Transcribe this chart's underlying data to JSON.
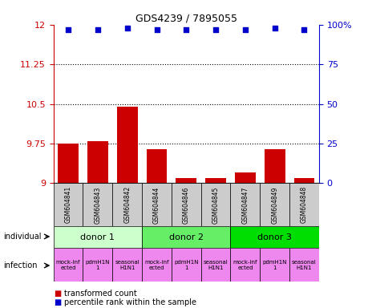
{
  "title": "GDS4239 / 7895055",
  "samples": [
    "GSM604841",
    "GSM604843",
    "GSM604842",
    "GSM604844",
    "GSM604846",
    "GSM604845",
    "GSM604847",
    "GSM604849",
    "GSM604848"
  ],
  "bar_values": [
    9.75,
    9.8,
    10.45,
    9.65,
    9.1,
    9.1,
    9.2,
    9.65,
    9.1
  ],
  "dot_values": [
    97,
    97,
    98,
    97,
    97,
    97,
    97,
    98,
    97
  ],
  "ylim_left": [
    9,
    12
  ],
  "ylim_right": [
    0,
    100
  ],
  "yticks_left": [
    9,
    9.75,
    10.5,
    11.25,
    12
  ],
  "yticks_right": [
    0,
    25,
    50,
    75,
    100
  ],
  "bar_color": "#cc0000",
  "dot_color": "#0000cc",
  "donors": [
    {
      "label": "donor 1",
      "start": 0,
      "end": 3,
      "color": "#ccffcc"
    },
    {
      "label": "donor 2",
      "start": 3,
      "end": 6,
      "color": "#66ee66"
    },
    {
      "label": "donor 3",
      "start": 6,
      "end": 9,
      "color": "#00dd00"
    }
  ],
  "infect_labels": [
    "mock-inf\nected",
    "pdmH1N\n1",
    "seasonal\nH1N1",
    "mock-inf\nected",
    "pdmH1N\n1",
    "seasonal\nH1N1",
    "mock-inf\nected",
    "pdmH1N\n1",
    "seasonal\nH1N1"
  ],
  "infection_color": "#ee88ee",
  "sample_box_color": "#cccccc",
  "left_axis_color": "#cc0000",
  "right_axis_color": "#0000cc",
  "right_tick_labels": [
    "0",
    "25",
    "50",
    "75",
    "100%"
  ]
}
